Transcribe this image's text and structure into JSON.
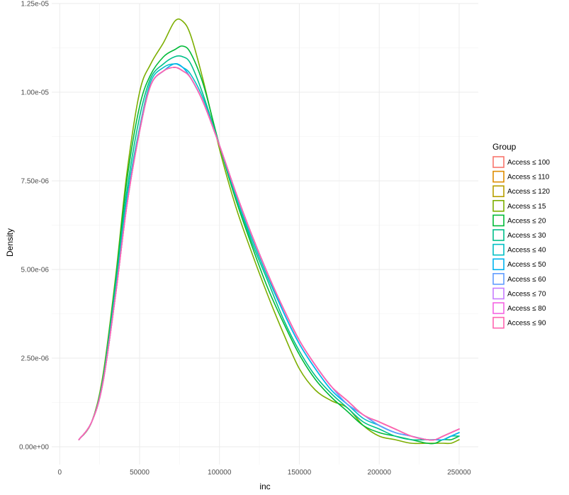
{
  "chart_data": {
    "type": "line",
    "title": "",
    "xlabel": "inc",
    "ylabel": "Density",
    "xlim": [
      -5000,
      262000
    ],
    "ylim": [
      -5e-07,
      1.25e-05
    ],
    "grid": true,
    "legend_position": "right",
    "legend_title": "Group",
    "x_ticks": [
      {
        "value": 0,
        "label": "0"
      },
      {
        "value": 50000,
        "label": "50000"
      },
      {
        "value": 100000,
        "label": "100000"
      },
      {
        "value": 150000,
        "label": "150000"
      },
      {
        "value": 200000,
        "label": "200000"
      },
      {
        "value": 250000,
        "label": "250000"
      }
    ],
    "y_ticks": [
      {
        "value": 0,
        "label": "0.00e+00"
      },
      {
        "value": 2.5e-06,
        "label": "2.50e-06"
      },
      {
        "value": 5e-06,
        "label": "5.00e-06"
      },
      {
        "value": 7.5e-06,
        "label": "7.50e-06"
      },
      {
        "value": 1e-05,
        "label": "1.00e-05"
      },
      {
        "value": 1.25e-05,
        "label": "1.25e-05"
      }
    ],
    "x": [
      12000,
      20000,
      27000,
      35000,
      42000,
      50000,
      57000,
      65000,
      72000,
      77000,
      82000,
      90000,
      100000,
      110000,
      120000,
      130000,
      140000,
      150000,
      160000,
      170000,
      180000,
      190000,
      200000,
      210000,
      220000,
      230000,
      235000,
      240000,
      245000,
      250000
    ],
    "series": [
      {
        "name": "Access ≤ 100",
        "color": "#F8766D",
        "values": [
          2e-07,
          7e-07,
          1.8e-06,
          4.3e-06,
          6.8e-06,
          8.9e-06,
          1.02e-05,
          1.06e-05,
          1.07e-05,
          1.06e-05,
          1.04e-05,
          9.7e-06,
          8.5e-06,
          7.2e-06,
          6e-06,
          4.9e-06,
          3.9e-06,
          3e-06,
          2.3e-06,
          1.7e-06,
          1.3e-06,
          9e-07,
          7e-07,
          5e-07,
          3e-07,
          2e-07,
          2e-07,
          3e-07,
          4e-07,
          5e-07
        ]
      },
      {
        "name": "Access ≤ 110",
        "color": "#DE8C00",
        "values": [
          2e-07,
          7e-07,
          1.8e-06,
          4.3e-06,
          6.8e-06,
          8.9e-06,
          1.02e-05,
          1.06e-05,
          1.07e-05,
          1.06e-05,
          1.04e-05,
          9.7e-06,
          8.5e-06,
          7.2e-06,
          6e-06,
          4.9e-06,
          3.9e-06,
          3e-06,
          2.3e-06,
          1.7e-06,
          1.3e-06,
          9e-07,
          7e-07,
          5e-07,
          3e-07,
          2e-07,
          2e-07,
          3e-07,
          4e-07,
          5e-07
        ]
      },
      {
        "name": "Access ≤ 120",
        "color": "#B79F00",
        "values": [
          2e-07,
          7e-07,
          1.8e-06,
          4.3e-06,
          6.8e-06,
          8.9e-06,
          1.02e-05,
          1.06e-05,
          1.07e-05,
          1.06e-05,
          1.04e-05,
          9.7e-06,
          8.5e-06,
          7.2e-06,
          6e-06,
          4.9e-06,
          3.9e-06,
          3e-06,
          2.3e-06,
          1.7e-06,
          1.3e-06,
          9e-07,
          7e-07,
          5e-07,
          3e-07,
          2e-07,
          2e-07,
          3e-07,
          4e-07,
          5e-07
        ]
      },
      {
        "name": "Access ≤ 15",
        "color": "#7CAE00",
        "values": [
          2e-07,
          7e-07,
          2e-06,
          4.8e-06,
          7.7e-06,
          1e-05,
          1.08e-05,
          1.14e-05,
          1.2e-05,
          1.2e-05,
          1.16e-05,
          1.03e-05,
          8.4e-06,
          6.8e-06,
          5.5e-06,
          4.3e-06,
          3.2e-06,
          2.2e-06,
          1.6e-06,
          1.3e-06,
          1.1e-06,
          6e-07,
          3e-07,
          2e-07,
          1e-07,
          1e-07,
          1e-07,
          1e-07,
          1e-07,
          2e-07
        ]
      },
      {
        "name": "Access ≤ 20",
        "color": "#00BA38",
        "values": [
          2e-07,
          7e-07,
          1.9e-06,
          4.7e-06,
          7.5e-06,
          9.6e-06,
          1.05e-05,
          1.1e-05,
          1.12e-05,
          1.13e-05,
          1.11e-05,
          1.02e-05,
          8.5e-06,
          7e-06,
          5.7e-06,
          4.5e-06,
          3.5e-06,
          2.6e-06,
          1.9e-06,
          1.4e-06,
          1e-06,
          6e-07,
          4e-07,
          3e-07,
          2e-07,
          1e-07,
          1e-07,
          2e-07,
          2e-07,
          3e-07
        ]
      },
      {
        "name": "Access ≤ 30",
        "color": "#00C08B",
        "values": [
          2e-07,
          7e-07,
          1.9e-06,
          4.6e-06,
          7.2e-06,
          9.3e-06,
          1.04e-05,
          1.08e-05,
          1.1e-05,
          1.1e-05,
          1.08e-05,
          9.9e-06,
          8.5e-06,
          7.1e-06,
          5.8e-06,
          4.7e-06,
          3.6e-06,
          2.7e-06,
          2e-06,
          1.5e-06,
          1.1e-06,
          7e-07,
          5e-07,
          3e-07,
          2e-07,
          2e-07,
          2e-07,
          2e-07,
          3e-07,
          3e-07
        ]
      },
      {
        "name": "Access ≤ 40",
        "color": "#00BFC4",
        "values": [
          2e-07,
          7e-07,
          1.8e-06,
          4.4e-06,
          7e-06,
          9e-06,
          1.03e-05,
          1.07e-05,
          1.08e-05,
          1.07e-05,
          1.05e-05,
          9.8e-06,
          8.5e-06,
          7.1e-06,
          5.9e-06,
          4.8e-06,
          3.8e-06,
          2.9e-06,
          2.2e-06,
          1.6e-06,
          1.2e-06,
          8e-07,
          6e-07,
          4e-07,
          3e-07,
          2e-07,
          2e-07,
          2e-07,
          3e-07,
          4e-07
        ]
      },
      {
        "name": "Access ≤ 50",
        "color": "#00B4F0",
        "values": [
          2e-07,
          7e-07,
          1.8e-06,
          4.3e-06,
          6.9e-06,
          8.9e-06,
          1.02e-05,
          1.06e-05,
          1.08e-05,
          1.07e-05,
          1.04e-05,
          9.7e-06,
          8.5e-06,
          7.2e-06,
          6e-06,
          4.9e-06,
          3.8e-06,
          2.9e-06,
          2.2e-06,
          1.6e-06,
          1.2e-06,
          9e-07,
          6e-07,
          4e-07,
          3e-07,
          2e-07,
          2e-07,
          2e-07,
          3e-07,
          4e-07
        ]
      },
      {
        "name": "Access ≤ 60",
        "color": "#619CFF",
        "values": [
          2e-07,
          7e-07,
          1.8e-06,
          4.3e-06,
          6.8e-06,
          8.9e-06,
          1.02e-05,
          1.06e-05,
          1.07e-05,
          1.06e-05,
          1.04e-05,
          9.7e-06,
          8.5e-06,
          7.2e-06,
          6e-06,
          4.9e-06,
          3.9e-06,
          3e-06,
          2.3e-06,
          1.7e-06,
          1.2e-06,
          9e-07,
          6e-07,
          4e-07,
          3e-07,
          2e-07,
          2e-07,
          3e-07,
          4e-07,
          5e-07
        ]
      },
      {
        "name": "Access ≤ 70",
        "color": "#C77CFF",
        "values": [
          2e-07,
          7e-07,
          1.8e-06,
          4.3e-06,
          6.8e-06,
          8.9e-06,
          1.02e-05,
          1.06e-05,
          1.07e-05,
          1.06e-05,
          1.04e-05,
          9.7e-06,
          8.5e-06,
          7.2e-06,
          6e-06,
          4.9e-06,
          3.9e-06,
          3e-06,
          2.3e-06,
          1.7e-06,
          1.3e-06,
          9e-07,
          7e-07,
          5e-07,
          3e-07,
          2e-07,
          2e-07,
          3e-07,
          4e-07,
          5e-07
        ]
      },
      {
        "name": "Access ≤ 80",
        "color": "#F564E3",
        "values": [
          2e-07,
          7e-07,
          1.8e-06,
          4.3e-06,
          6.8e-06,
          8.9e-06,
          1.02e-05,
          1.06e-05,
          1.07e-05,
          1.06e-05,
          1.04e-05,
          9.7e-06,
          8.5e-06,
          7.2e-06,
          6e-06,
          4.9e-06,
          3.9e-06,
          3e-06,
          2.3e-06,
          1.7e-06,
          1.3e-06,
          9e-07,
          7e-07,
          5e-07,
          3e-07,
          2e-07,
          2e-07,
          3e-07,
          4e-07,
          5e-07
        ]
      },
      {
        "name": "Access ≤ 90",
        "color": "#FF64B0",
        "values": [
          2e-07,
          7e-07,
          1.8e-06,
          4.3e-06,
          6.8e-06,
          8.9e-06,
          1.02e-05,
          1.06e-05,
          1.07e-05,
          1.06e-05,
          1.04e-05,
          9.7e-06,
          8.5e-06,
          7.2e-06,
          6e-06,
          4.9e-06,
          3.9e-06,
          3e-06,
          2.3e-06,
          1.7e-06,
          1.3e-06,
          9e-07,
          7e-07,
          5e-07,
          3e-07,
          2e-07,
          2e-07,
          3e-07,
          4e-07,
          5e-07
        ]
      }
    ]
  }
}
